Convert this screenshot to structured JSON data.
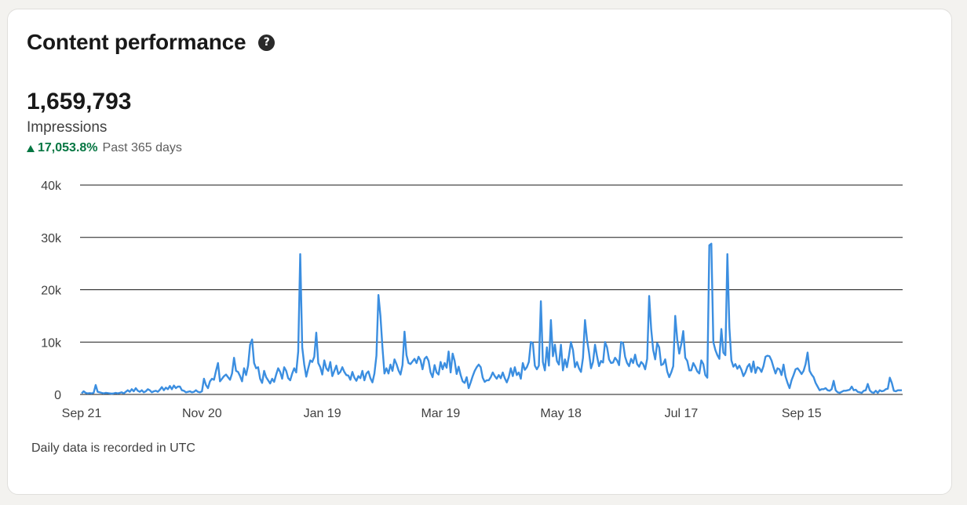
{
  "card": {
    "title": "Content performance",
    "help_icon": "question-circle-icon"
  },
  "metric": {
    "value": "1,659,793",
    "label": "Impressions",
    "change_icon": "triangle-up-icon",
    "change": "17,053.8%",
    "period": "Past 365 days"
  },
  "footnote": "Daily data is recorded in UTC",
  "colors": {
    "line": "#3b8ee0",
    "positive": "#057642",
    "grid": "#1a1a1a"
  },
  "chart_data": {
    "type": "line",
    "title": "",
    "xlabel": "",
    "ylabel": "",
    "ylim": [
      0,
      40000
    ],
    "yticks": [
      0,
      10000,
      20000,
      30000,
      40000
    ],
    "ytick_labels": [
      "0",
      "10k",
      "20k",
      "30k",
      "40k"
    ],
    "xtick_labels": [
      "Sep 21",
      "Nov 20",
      "Jan 19",
      "Mar 19",
      "May 18",
      "Jul 17",
      "Sep 15"
    ],
    "xtick_day_index": [
      0,
      60,
      120,
      179,
      239,
      299,
      359
    ],
    "grid": true,
    "legend": "none",
    "series": [
      {
        "values": [
          200,
          600,
          300,
          200,
          250,
          200,
          300,
          1800,
          500,
          400,
          300,
          200,
          300,
          250,
          200,
          150,
          200,
          300,
          200,
          300,
          400,
          200,
          500,
          800,
          500,
          1000,
          600,
          1200,
          700,
          500,
          800,
          400,
          600,
          1000,
          800,
          400,
          600,
          700,
          500,
          900,
          1400,
          800,
          1300,
          1000,
          1600,
          1000,
          1700,
          1200,
          1500,
          1500,
          800,
          700,
          400,
          500,
          600,
          400,
          500,
          800,
          500,
          400,
          600,
          3000,
          1800,
          1200,
          2500,
          3000,
          2800,
          4500,
          6000,
          2500,
          3000,
          3500,
          3800,
          3300,
          2800,
          4000,
          7000,
          4500,
          4300,
          3500,
          2500,
          5000,
          3700,
          5500,
          9500,
          10500,
          6000,
          5000,
          5200,
          3000,
          2200,
          4500,
          3300,
          2700,
          2100,
          3000,
          2400,
          3800,
          5000,
          4300,
          3000,
          5200,
          4500,
          3100,
          2700,
          4000,
          5000,
          4200,
          8200,
          26800,
          9000,
          5700,
          3400,
          5000,
          6500,
          6200,
          7200,
          11800,
          6000,
          5200,
          3800,
          6500,
          5000,
          4500,
          6200,
          3500,
          4500,
          5500,
          3900,
          4300,
          5200,
          4300,
          3700,
          3600,
          2800,
          4300,
          3200,
          2600,
          3500,
          3100,
          4500,
          2700,
          4000,
          4400,
          3100,
          2300,
          4000,
          7400,
          19000,
          15000,
          9000,
          4000,
          5000,
          4000,
          5700,
          4500,
          6700,
          5800,
          4600,
          3800,
          5600,
          12000,
          7500,
          6000,
          5800,
          6300,
          6800,
          6000,
          7200,
          6500,
          4800,
          6800,
          7200,
          6400,
          4200,
          3300,
          5600,
          4200,
          3800,
          6200,
          4800,
          6000,
          5100,
          8200,
          4200,
          7800,
          6400,
          3900,
          5300,
          3700,
          2500,
          2200,
          3300,
          1200,
          2300,
          3500,
          4500,
          5200,
          5700,
          5200,
          3200,
          2400,
          2700,
          2700,
          3300,
          4200,
          3500,
          3000,
          3700,
          3100,
          4200,
          3100,
          2300,
          3300,
          5000,
          3500,
          5200,
          3700,
          4200,
          3000,
          6000,
          4700,
          5200,
          6200,
          10000,
          9800,
          5500,
          4800,
          5500,
          17800,
          6200,
          4600,
          9000,
          5500,
          14200,
          7300,
          9500,
          6400,
          5700,
          9500,
          4600,
          6700,
          5200,
          7400,
          10000,
          8500,
          5200,
          6200,
          5000,
          4300,
          7000,
          14200,
          10500,
          8000,
          5000,
          6200,
          9500,
          7300,
          5400,
          6400,
          6100,
          10000,
          9000,
          6700,
          6000,
          6100,
          7000,
          6500,
          5600,
          10000,
          9800,
          7200,
          6000,
          5400,
          6800,
          6000,
          7600,
          5800,
          5300,
          6200,
          5800,
          4800,
          6800,
          18800,
          12500,
          8500,
          6700,
          9800,
          9000,
          5600,
          5800,
          6700,
          4400,
          3300,
          4200,
          5400,
          15000,
          10500,
          7800,
          9600,
          12100,
          7000,
          6400,
          4600,
          4600,
          6000,
          5300,
          4400,
          4000,
          6500,
          5800,
          3700,
          3200,
          28500,
          28800,
          10000,
          8500,
          7500,
          6800,
          12500,
          8000,
          7500,
          26800,
          12800,
          6500,
          5300,
          5800,
          4900,
          5500,
          4700,
          3500,
          4200,
          5300,
          5800,
          4300,
          6300,
          4100,
          5200,
          5000,
          4300,
          5400,
          7200,
          7400,
          7300,
          6500,
          5200,
          4000,
          5000,
          4800,
          3700,
          5700,
          3400,
          2200,
          1200,
          2700,
          3700,
          4800,
          5000,
          4500,
          3900,
          4500,
          5800,
          8000,
          4500,
          3800,
          3300,
          2200,
          1500,
          800,
          1000,
          1000,
          1200,
          800,
          700,
          1000,
          2600,
          800,
          400,
          300,
          500,
          700,
          700,
          800,
          900,
          1500,
          800,
          900,
          500,
          400,
          300,
          700,
          800,
          2000,
          800,
          400,
          300,
          700,
          300,
          800,
          600,
          700,
          1000,
          1100,
          3200,
          2200,
          700,
          600,
          800,
          800,
          800
        ]
      }
    ]
  }
}
